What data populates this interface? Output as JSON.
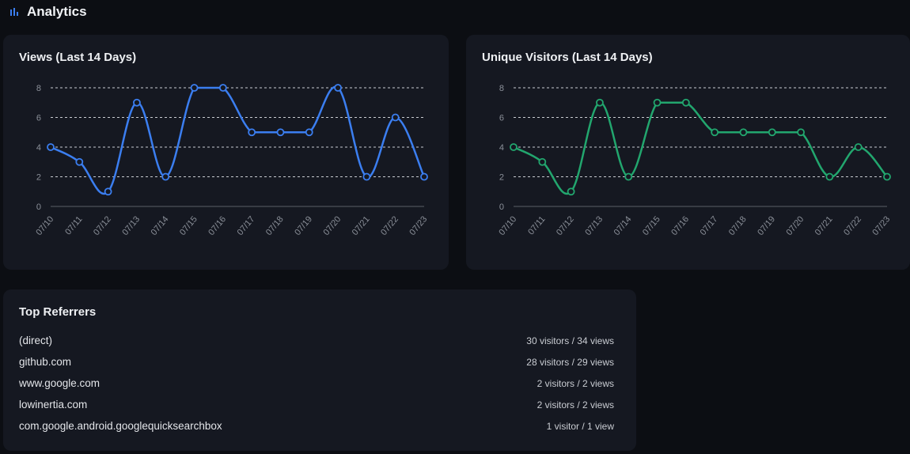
{
  "header": {
    "title": "Analytics",
    "icon": "bar-chart-icon"
  },
  "views_card": {
    "title": "Views (Last 14 Days)",
    "chart_data": {
      "type": "line",
      "title": "Views (Last 14 Days)",
      "categories": [
        "07/10",
        "07/11",
        "07/12",
        "07/13",
        "07/14",
        "07/15",
        "07/16",
        "07/17",
        "07/18",
        "07/19",
        "07/20",
        "07/21",
        "07/22",
        "07/23"
      ],
      "series": [
        {
          "values": [
            4,
            3,
            1,
            7,
            2,
            8,
            8,
            5,
            5,
            5,
            8,
            2,
            6,
            2
          ]
        }
      ],
      "yticks": [
        0,
        2,
        4,
        6,
        8
      ],
      "ylim": [
        0,
        8
      ],
      "grid": "horizontal dashed",
      "color": "#3b7ef0"
    }
  },
  "visitors_card": {
    "title": "Unique Visitors (Last 14 Days)",
    "chart_data": {
      "type": "line",
      "title": "Unique Visitors (Last 14 Days)",
      "categories": [
        "07/10",
        "07/11",
        "07/12",
        "07/13",
        "07/14",
        "07/15",
        "07/16",
        "07/17",
        "07/18",
        "07/19",
        "07/20",
        "07/21",
        "07/22",
        "07/23"
      ],
      "series": [
        {
          "values": [
            4,
            3,
            1,
            7,
            2,
            7,
            7,
            5,
            5,
            5,
            5,
            2,
            4,
            2
          ]
        }
      ],
      "yticks": [
        0,
        2,
        4,
        6,
        8
      ],
      "ylim": [
        0,
        8
      ],
      "grid": "horizontal dashed",
      "color": "#22a66e"
    }
  },
  "referrers": {
    "title": "Top Referrers",
    "items": [
      {
        "name": "(direct)",
        "stats": "30 visitors / 34 views"
      },
      {
        "name": "github.com",
        "stats": "28 visitors / 29 views"
      },
      {
        "name": "www.google.com",
        "stats": "2 visitors / 2 views"
      },
      {
        "name": "lowinertia.com",
        "stats": "2 visitors / 2 views"
      },
      {
        "name": "com.google.android.googlequicksearchbox",
        "stats": "1 visitor / 1 view"
      }
    ]
  }
}
